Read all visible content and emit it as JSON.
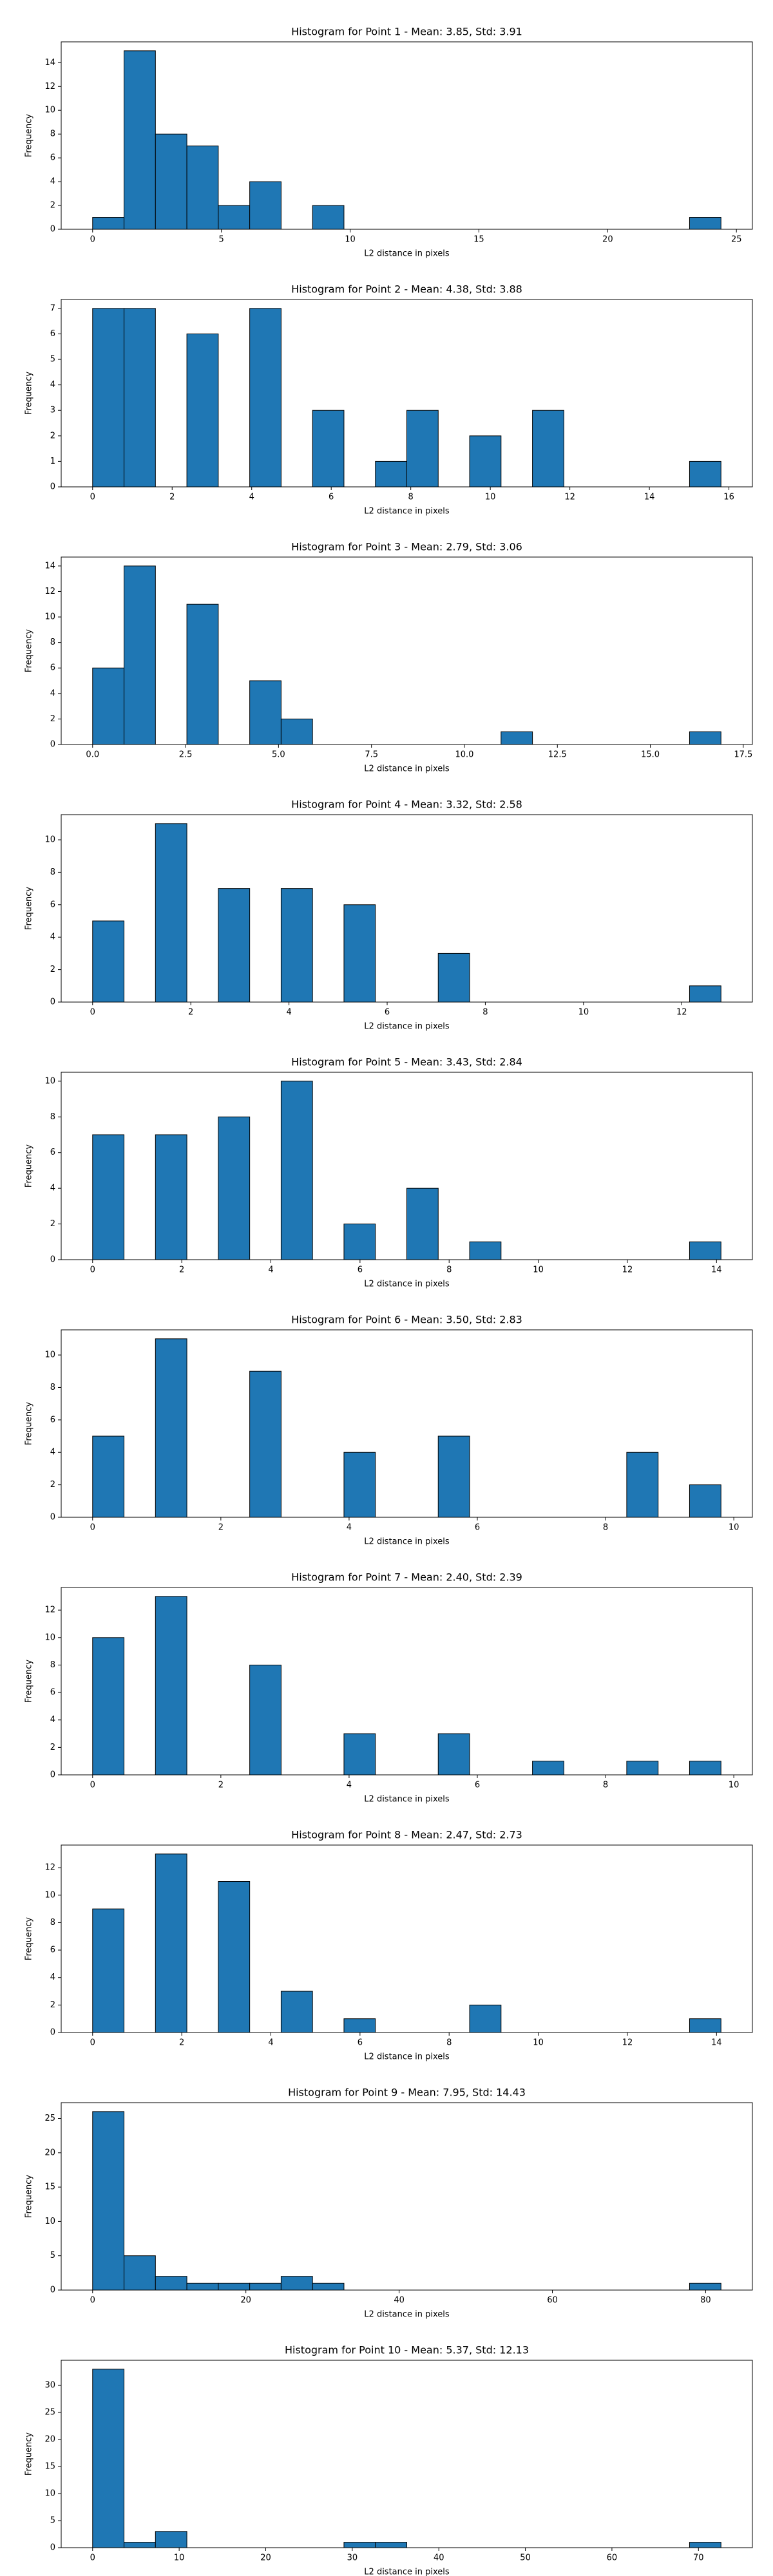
{
  "chart_data": [
    {
      "type": "histogram",
      "title": "Histogram for Point 1 - Mean: 3.85, Std: 3.91",
      "x_label": "L2 distance in pixels",
      "y_label": "Frequency",
      "color": "#1f77b4",
      "edgecolor": "#000000",
      "bins": [
        0,
        1.22,
        2.44,
        3.66,
        4.88,
        6.1,
        7.32,
        8.54,
        9.76,
        10.98,
        12.2,
        13.42,
        14.64,
        15.86,
        17.08,
        18.3,
        19.52,
        20.74,
        21.96,
        23.18,
        24.4
      ],
      "counts": [
        1,
        15,
        8,
        7,
        2,
        4,
        0,
        2,
        0,
        0,
        0,
        0,
        0,
        0,
        0,
        0,
        0,
        0,
        0,
        1
      ],
      "xlim": [
        -1.22,
        25.62
      ],
      "ylim": [
        0,
        15.75
      ],
      "xticks": [
        0,
        5,
        10,
        15,
        20,
        25
      ],
      "yticks": [
        0,
        2,
        4,
        6,
        8,
        10,
        12,
        14
      ]
    },
    {
      "type": "histogram",
      "title": "Histogram for Point 2 - Mean: 4.38, Std: 3.88",
      "x_label": "L2 distance in pixels",
      "y_label": "Frequency",
      "color": "#1f77b4",
      "edgecolor": "#000000",
      "bins": [
        0,
        0.79,
        1.58,
        2.37,
        3.16,
        3.95,
        4.74,
        5.53,
        6.32,
        7.11,
        7.9,
        8.69,
        9.48,
        10.27,
        11.06,
        11.85,
        12.64,
        13.43,
        14.22,
        15.01,
        15.8
      ],
      "counts": [
        7,
        7,
        0,
        6,
        0,
        7,
        0,
        3,
        0,
        1,
        3,
        0,
        2,
        0,
        3,
        0,
        0,
        0,
        0,
        1
      ],
      "xlim": [
        -0.79,
        16.59
      ],
      "ylim": [
        0,
        7.35
      ],
      "xticks": [
        0,
        2,
        4,
        6,
        8,
        10,
        12,
        14,
        16
      ],
      "yticks": [
        0,
        1,
        2,
        3,
        4,
        5,
        6,
        7
      ]
    },
    {
      "type": "histogram",
      "title": "Histogram for Point 3 - Mean: 2.79, Std: 3.06",
      "x_label": "L2 distance in pixels",
      "y_label": "Frequency",
      "color": "#1f77b4",
      "edgecolor": "#000000",
      "bins": [
        0,
        0.845,
        1.69,
        2.535,
        3.38,
        4.225,
        5.07,
        5.915,
        6.76,
        7.605,
        8.45,
        9.295,
        10.14,
        10.985,
        11.83,
        12.675,
        13.52,
        14.365,
        15.21,
        16.055,
        16.9
      ],
      "counts": [
        6,
        14,
        0,
        11,
        0,
        5,
        2,
        0,
        0,
        0,
        0,
        0,
        0,
        1,
        0,
        0,
        0,
        0,
        0,
        1
      ],
      "xlim": [
        -0.845,
        17.745
      ],
      "ylim": [
        0,
        14.7
      ],
      "xticks": [
        {
          "value": 0,
          "label": "0.0"
        },
        2.5,
        {
          "value": 5,
          "label": "5.0"
        },
        7.5,
        {
          "value": 10,
          "label": "10.0"
        },
        12.5,
        {
          "value": 15,
          "label": "15.0"
        },
        17.5
      ],
      "yticks": [
        0,
        2,
        4,
        6,
        8,
        10,
        12,
        14
      ]
    },
    {
      "type": "histogram",
      "title": "Histogram for Point 4 - Mean: 3.32, Std: 2.58",
      "x_label": "L2 distance in pixels",
      "y_label": "Frequency",
      "color": "#1f77b4",
      "edgecolor": "#000000",
      "bins": [
        0,
        0.64,
        1.28,
        1.92,
        2.56,
        3.2,
        3.84,
        4.48,
        5.12,
        5.76,
        6.4,
        7.04,
        7.68,
        8.32,
        8.96,
        9.6,
        10.24,
        10.88,
        11.52,
        12.16,
        12.8
      ],
      "counts": [
        5,
        0,
        11,
        0,
        7,
        0,
        7,
        0,
        6,
        0,
        0,
        3,
        0,
        0,
        0,
        0,
        0,
        0,
        0,
        1
      ],
      "xlim": [
        -0.64,
        13.44
      ],
      "ylim": [
        0,
        11.55
      ],
      "xticks": [
        0,
        2,
        4,
        6,
        8,
        10,
        12
      ],
      "yticks": [
        0,
        2,
        4,
        6,
        8,
        10
      ]
    },
    {
      "type": "histogram",
      "title": "Histogram for Point 5 - Mean: 3.43, Std: 2.84",
      "x_label": "L2 distance in pixels",
      "y_label": "Frequency",
      "color": "#1f77b4",
      "edgecolor": "#000000",
      "bins": [
        0,
        0.705,
        1.41,
        2.115,
        2.82,
        3.525,
        4.23,
        4.935,
        5.64,
        6.345,
        7.05,
        7.755,
        8.46,
        9.165,
        9.87,
        10.575,
        11.28,
        11.985,
        12.69,
        13.395,
        14.1
      ],
      "counts": [
        7,
        0,
        7,
        0,
        8,
        0,
        10,
        0,
        2,
        0,
        4,
        0,
        1,
        0,
        0,
        0,
        0,
        0,
        0,
        1
      ],
      "xlim": [
        -0.705,
        14.805
      ],
      "ylim": [
        0,
        10.5
      ],
      "xticks": [
        0,
        2,
        4,
        6,
        8,
        10,
        12,
        14
      ],
      "yticks": [
        0,
        2,
        4,
        6,
        8,
        10
      ]
    },
    {
      "type": "histogram",
      "title": "Histogram for Point 6 - Mean: 3.50, Std: 2.83",
      "x_label": "L2 distance in pixels",
      "y_label": "Frequency",
      "color": "#1f77b4",
      "edgecolor": "#000000",
      "bins": [
        0,
        0.49,
        0.98,
        1.47,
        1.96,
        2.45,
        2.94,
        3.43,
        3.92,
        4.41,
        4.9,
        5.39,
        5.88,
        6.37,
        6.86,
        7.35,
        7.84,
        8.33,
        8.82,
        9.31,
        9.8
      ],
      "counts": [
        5,
        0,
        11,
        0,
        0,
        9,
        0,
        0,
        4,
        0,
        0,
        5,
        0,
        0,
        0,
        0,
        0,
        4,
        0,
        2
      ],
      "xlim": [
        -0.49,
        10.29
      ],
      "ylim": [
        0,
        11.55
      ],
      "xticks": [
        0,
        2,
        4,
        6,
        8,
        10
      ],
      "yticks": [
        0,
        2,
        4,
        6,
        8,
        10
      ]
    },
    {
      "type": "histogram",
      "title": "Histogram for Point 7 - Mean: 2.40, Std: 2.39",
      "x_label": "L2 distance in pixels",
      "y_label": "Frequency",
      "color": "#1f77b4",
      "edgecolor": "#000000",
      "bins": [
        0,
        0.49,
        0.98,
        1.47,
        1.96,
        2.45,
        2.94,
        3.43,
        3.92,
        4.41,
        4.9,
        5.39,
        5.88,
        6.37,
        6.86,
        7.35,
        7.84,
        8.33,
        8.82,
        9.31,
        9.8
      ],
      "counts": [
        10,
        0,
        13,
        0,
        0,
        8,
        0,
        0,
        3,
        0,
        0,
        3,
        0,
        0,
        1,
        0,
        0,
        1,
        0,
        1
      ],
      "xlim": [
        -0.49,
        10.29
      ],
      "ylim": [
        0,
        13.65
      ],
      "xticks": [
        0,
        2,
        4,
        6,
        8,
        10
      ],
      "yticks": [
        0,
        2,
        4,
        6,
        8,
        10,
        12
      ]
    },
    {
      "type": "histogram",
      "title": "Histogram for Point 8 - Mean: 2.47, Std: 2.73",
      "x_label": "L2 distance in pixels",
      "y_label": "Frequency",
      "color": "#1f77b4",
      "edgecolor": "#000000",
      "bins": [
        0,
        0.705,
        1.41,
        2.115,
        2.82,
        3.525,
        4.23,
        4.935,
        5.64,
        6.345,
        7.05,
        7.755,
        8.46,
        9.165,
        9.87,
        10.575,
        11.28,
        11.985,
        12.69,
        13.395,
        14.1
      ],
      "counts": [
        9,
        0,
        13,
        0,
        11,
        0,
        3,
        0,
        1,
        0,
        0,
        0,
        2,
        0,
        0,
        0,
        0,
        0,
        0,
        1
      ],
      "xlim": [
        -0.705,
        14.805
      ],
      "ylim": [
        0,
        13.65
      ],
      "xticks": [
        0,
        2,
        4,
        6,
        8,
        10,
        12,
        14
      ],
      "yticks": [
        0,
        2,
        4,
        6,
        8,
        10,
        12
      ]
    },
    {
      "type": "histogram",
      "title": "Histogram for Point 9 - Mean: 7.95, Std: 14.43",
      "x_label": "L2 distance in pixels",
      "y_label": "Frequency",
      "color": "#1f77b4",
      "edgecolor": "#000000",
      "bins": [
        0,
        4.1,
        8.2,
        12.3,
        16.4,
        20.5,
        24.6,
        28.7,
        32.8,
        36.9,
        41,
        45.1,
        49.2,
        53.3,
        57.4,
        61.5,
        65.6,
        69.7,
        73.8,
        77.9,
        82
      ],
      "counts": [
        26,
        5,
        2,
        1,
        1,
        1,
        2,
        1,
        0,
        0,
        0,
        0,
        0,
        0,
        0,
        0,
        0,
        0,
        0,
        1
      ],
      "xlim": [
        -4.1,
        86.1
      ],
      "ylim": [
        0,
        27.3
      ],
      "xticks": [
        0,
        20,
        40,
        60,
        80
      ],
      "yticks": [
        0,
        5,
        10,
        15,
        20,
        25
      ]
    },
    {
      "type": "histogram",
      "title": "Histogram for Point 10 - Mean: 5.37, Std: 12.13",
      "x_label": "L2 distance in pixels",
      "y_label": "Frequency",
      "color": "#1f77b4",
      "edgecolor": "#000000",
      "bins": [
        0,
        3.63,
        7.26,
        10.89,
        14.52,
        18.15,
        21.78,
        25.41,
        29.04,
        32.67,
        36.3,
        39.93,
        43.56,
        47.19,
        50.82,
        54.45,
        58.08,
        61.71,
        65.34,
        68.97,
        72.6
      ],
      "counts": [
        33,
        1,
        3,
        0,
        0,
        0,
        0,
        0,
        1,
        1,
        0,
        0,
        0,
        0,
        0,
        0,
        0,
        0,
        0,
        1
      ],
      "xlim": [
        -3.63,
        76.23
      ],
      "ylim": [
        0,
        34.65
      ],
      "xticks": [
        0,
        10,
        20,
        30,
        40,
        50,
        60,
        70
      ],
      "yticks": [
        0,
        5,
        10,
        15,
        20,
        25,
        30
      ]
    }
  ]
}
